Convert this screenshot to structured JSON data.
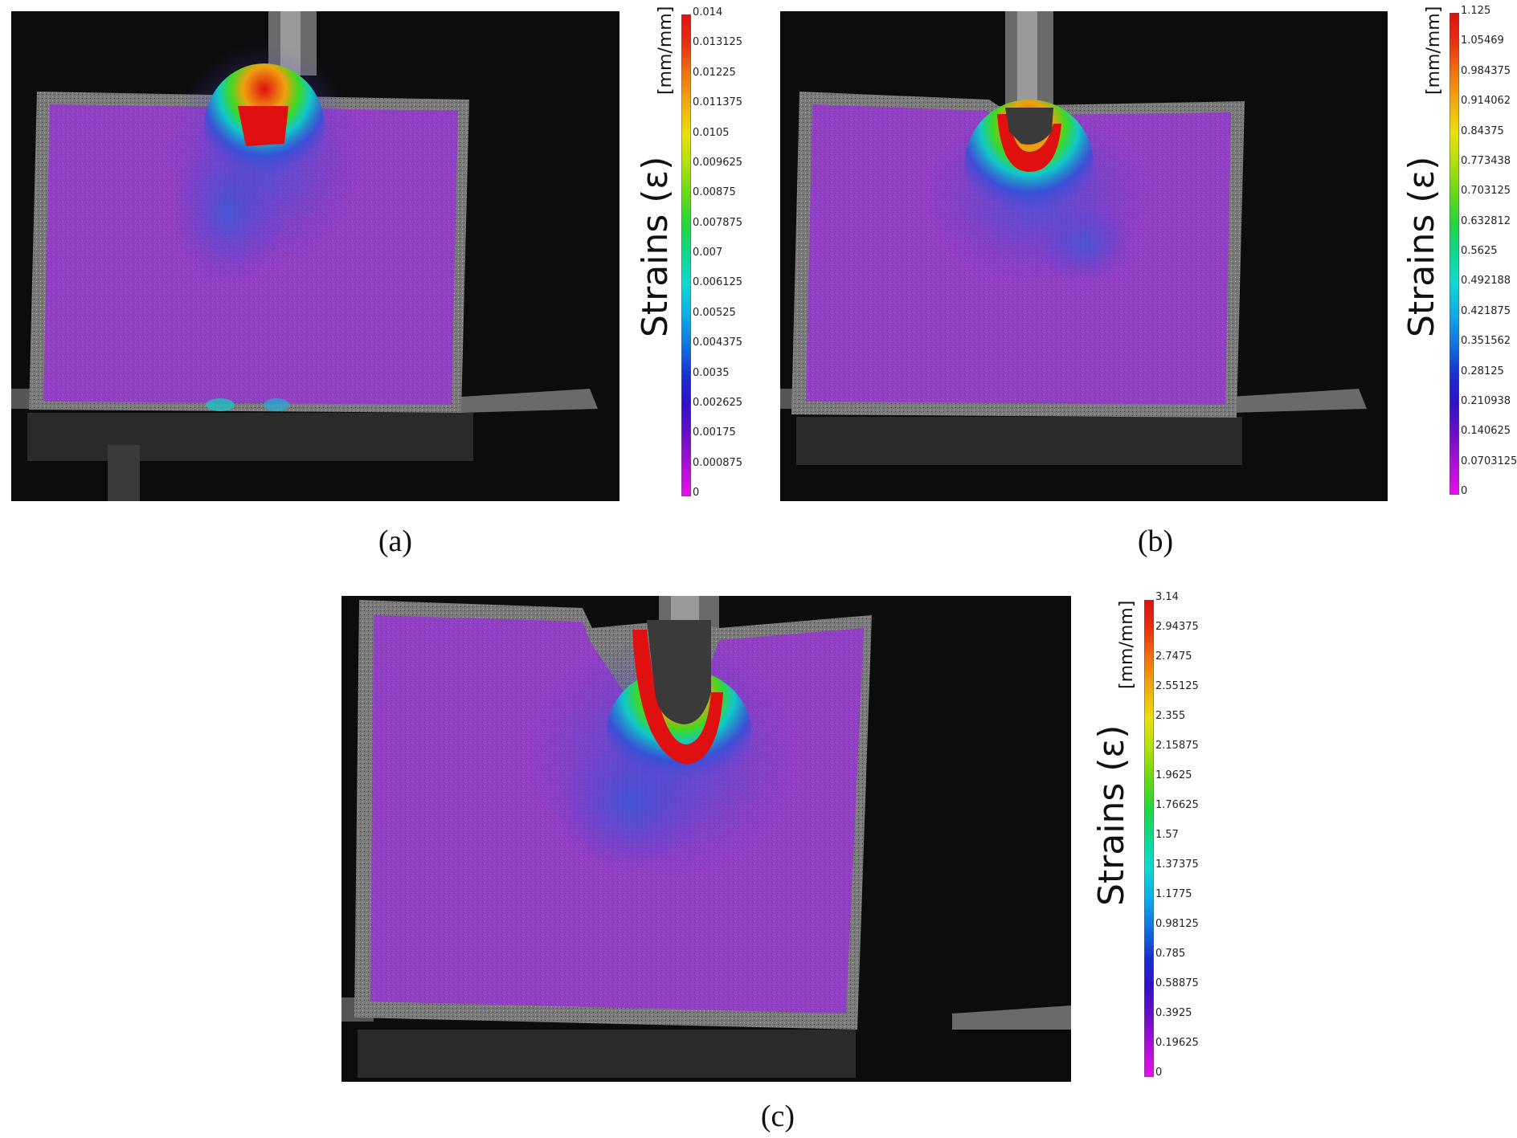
{
  "figure": {
    "panels": [
      {
        "id": "a",
        "caption": "(a)",
        "colorbar": {
          "unit": "[mm/mm]",
          "label": "Strains (ε)",
          "ticks": [
            "0.014",
            "0.013125",
            "0.01225",
            "0.011375",
            "0.0105",
            "0.009625",
            "0.00875",
            "0.007875",
            "0.007",
            "0.006125",
            "0.00525",
            "0.004375",
            "0.0035",
            "0.002625",
            "0.00175",
            "0.000875",
            "0"
          ]
        }
      },
      {
        "id": "b",
        "caption": "(b)",
        "colorbar": {
          "unit": "[mm/mm]",
          "label": "Strains (ε)",
          "ticks": [
            "1.125",
            "1.05469",
            "0.984375",
            "0.914062",
            "0.84375",
            "0.773438",
            "0.703125",
            "0.632812",
            "0.5625",
            "0.492188",
            "0.421875",
            "0.351562",
            "0.28125",
            "0.210938",
            "0.140625",
            "0.0703125",
            "0"
          ]
        }
      },
      {
        "id": "c",
        "caption": "(c)",
        "colorbar": {
          "unit": "[mm/mm]",
          "label": "Strains (ε)",
          "ticks": [
            "3.14",
            "2.94375",
            "2.7475",
            "2.55125",
            "2.355",
            "2.15875",
            "1.9625",
            "1.76625",
            "1.57",
            "1.37375",
            "1.1775",
            "0.98125",
            "0.785",
            "0.58875",
            "0.3925",
            "0.19625",
            "0"
          ]
        }
      }
    ],
    "colors": {
      "background": "#0c0c0c",
      "specimen_edge": "#8a8a8a",
      "overlay_magenta": "#9a3fc6",
      "strain_scale": [
        "#e01010",
        "#f05a10",
        "#f0a010",
        "#e8e010",
        "#a8e010",
        "#40d820",
        "#10d878",
        "#10d8d0",
        "#10a8e8",
        "#1060e0",
        "#2020c8",
        "#6010c8",
        "#a010d8",
        "#e010e0"
      ]
    }
  }
}
